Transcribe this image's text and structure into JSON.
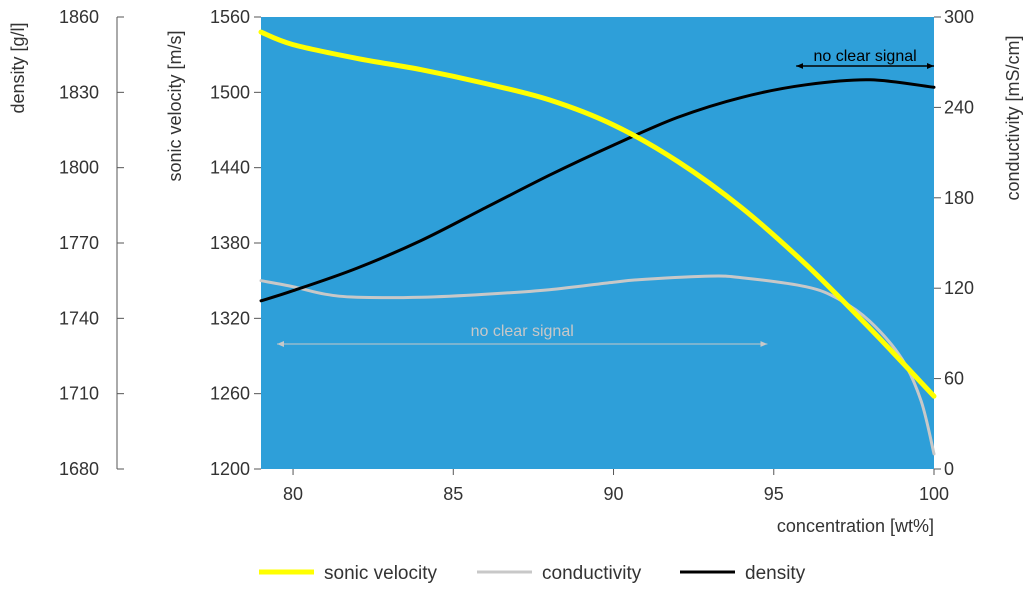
{
  "chart_data": {
    "type": "line",
    "xlabel": "concentration [wt%]",
    "xlim": [
      79,
      100
    ],
    "xticks": [
      80,
      85,
      90,
      95,
      100
    ],
    "background": "#2e9fd9",
    "axes": {
      "sonic_velocity": {
        "label": "sonic velocity [m/s]",
        "lim": [
          1200,
          1560
        ],
        "ticks": [
          1200,
          1260,
          1320,
          1380,
          1440,
          1500,
          1560
        ]
      },
      "density": {
        "label": "density [g/l]",
        "lim": [
          1680,
          1860
        ],
        "ticks": [
          1680,
          1710,
          1740,
          1770,
          1800,
          1830,
          1860
        ]
      },
      "conductivity": {
        "label": "conductivity [mS/cm]",
        "lim": [
          0,
          300
        ],
        "ticks": [
          0,
          60,
          120,
          180,
          240,
          300
        ]
      }
    },
    "series": [
      {
        "name": "sonic velocity",
        "axis": "sonic_velocity",
        "color": "#ffff00",
        "x": [
          79,
          80,
          82,
          84,
          86,
          88,
          90,
          92,
          94,
          96,
          98,
          100
        ],
        "y": [
          1548,
          1538,
          1527,
          1518,
          1507,
          1494,
          1474,
          1445,
          1408,
          1363,
          1312,
          1258
        ]
      },
      {
        "name": "conductivity",
        "axis": "conductivity",
        "color": "#c8c8c8",
        "x": [
          79,
          80,
          81,
          82,
          84,
          86,
          88,
          90,
          91,
          93,
          94,
          96,
          97,
          98,
          99,
          99.6,
          100
        ],
        "y": [
          125,
          121,
          116,
          114,
          114,
          116,
          119,
          124,
          126,
          128,
          127,
          121,
          113,
          98,
          73,
          45,
          10
        ]
      },
      {
        "name": "density",
        "axis": "density",
        "color": "#000000",
        "x": [
          79,
          80,
          82,
          84,
          86,
          88,
          90,
          92,
          94,
          96,
          98,
          100
        ],
        "y": [
          1747,
          1751,
          1760,
          1771,
          1784,
          1797,
          1809,
          1820,
          1828,
          1833,
          1835,
          1832
        ]
      }
    ],
    "annotations": [
      {
        "text": "no clear signal",
        "color": "#000000",
        "x_from": 95.7,
        "x_to": 100
      },
      {
        "text": "no clear signal",
        "color": "#c8c8c8",
        "x_from": 79.5,
        "x_to": 94.8
      }
    ],
    "legend": "bottom-center",
    "grid": false
  }
}
